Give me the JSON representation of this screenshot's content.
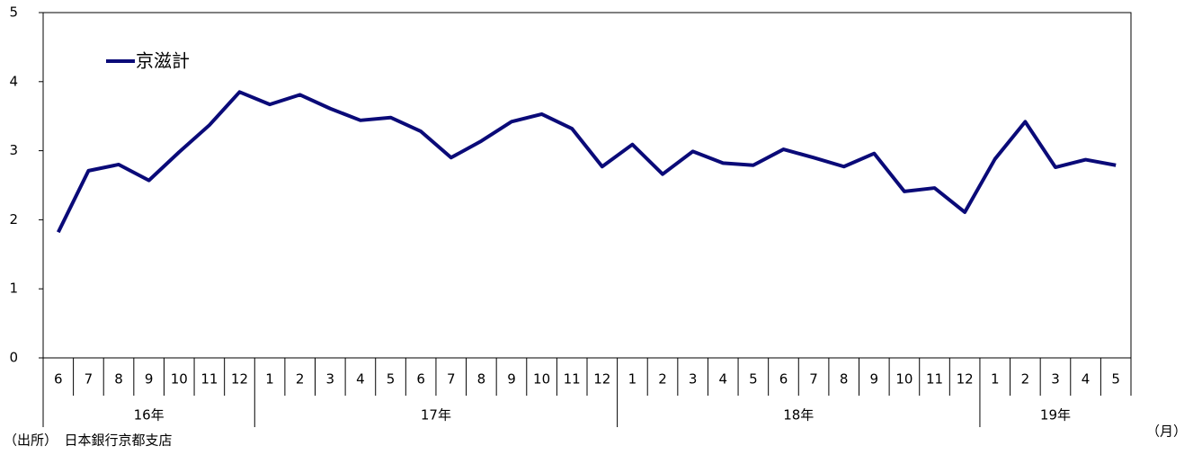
{
  "chart_data": {
    "type": "line",
    "categories": [
      "6",
      "7",
      "8",
      "9",
      "10",
      "11",
      "12",
      "1",
      "2",
      "3",
      "4",
      "5",
      "6",
      "7",
      "8",
      "9",
      "10",
      "11",
      "12",
      "1",
      "2",
      "3",
      "4",
      "5",
      "6",
      "7",
      "8",
      "9",
      "10",
      "11",
      "12",
      "1",
      "2",
      "3",
      "4",
      "5"
    ],
    "x_groups": [
      {
        "label": "16年",
        "count": 7
      },
      {
        "label": "17年",
        "count": 12
      },
      {
        "label": "18年",
        "count": 12
      },
      {
        "label": "19年",
        "count": 5
      }
    ],
    "x_unit": "（月）",
    "source": "（出所）　日本銀行京都支店",
    "series": [
      {
        "name": "京滋計",
        "color": "#0a0a78",
        "values": [
          1.82,
          2.71,
          2.8,
          2.57,
          2.98,
          3.37,
          3.85,
          3.67,
          3.81,
          3.61,
          3.44,
          3.48,
          3.28,
          2.9,
          3.14,
          3.42,
          3.53,
          3.32,
          2.77,
          3.09,
          2.66,
          2.99,
          2.82,
          2.79,
          3.02,
          2.9,
          2.77,
          2.96,
          2.41,
          2.46,
          2.11,
          2.88,
          3.42,
          2.76,
          2.87,
          2.79
        ]
      }
    ],
    "ylim": [
      0,
      5
    ],
    "yticks": [
      0,
      1,
      2,
      3,
      4,
      5
    ],
    "grid": false
  }
}
